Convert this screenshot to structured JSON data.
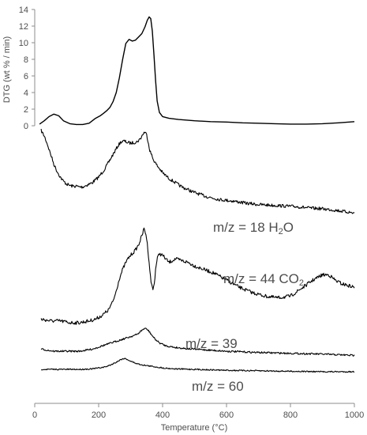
{
  "chart_data": {
    "type": "line",
    "xlabel": "Temperature (°C)",
    "ylabel": "DTG (wt % / min)",
    "xlim": [
      0,
      1000
    ],
    "ylim": [
      0,
      14
    ],
    "xticks": [
      0,
      200,
      400,
      600,
      800,
      1000
    ],
    "yticks": [
      0,
      2,
      4,
      6,
      8,
      10,
      12,
      14
    ],
    "grid": false,
    "colors": {
      "line": "#000000",
      "axis": "#8c8c8c",
      "text": "#4d4d4d"
    },
    "series": [
      {
        "name": "DTG",
        "x": [
          15,
          30,
          45,
          60,
          75,
          90,
          110,
          130,
          150,
          170,
          190,
          205,
          215,
          225,
          235,
          245,
          255,
          265,
          275,
          285,
          295,
          305,
          315,
          325,
          335,
          345,
          352,
          358,
          363,
          368,
          373,
          378,
          383,
          390,
          400,
          420,
          450,
          500,
          550,
          600,
          650,
          700,
          750,
          800,
          850,
          900,
          950,
          1000
        ],
        "y": [
          0.2,
          0.6,
          1.1,
          1.4,
          1.2,
          0.6,
          0.25,
          0.15,
          0.15,
          0.3,
          0.9,
          1.2,
          1.5,
          1.8,
          2.2,
          2.9,
          4.0,
          5.8,
          8.0,
          9.9,
          10.4,
          10.2,
          10.3,
          10.7,
          11.1,
          11.9,
          12.7,
          13.1,
          12.9,
          11.4,
          8.5,
          5.5,
          3.0,
          1.6,
          1.1,
          0.9,
          0.75,
          0.6,
          0.5,
          0.45,
          0.35,
          0.3,
          0.25,
          0.2,
          0.2,
          0.25,
          0.35,
          0.5
        ]
      },
      {
        "name": "m/z = 18 H2O",
        "x": [
          20,
          30,
          40,
          50,
          60,
          70,
          80,
          90,
          100,
          110,
          120,
          130,
          140,
          150,
          160,
          170,
          180,
          190,
          200,
          210,
          220,
          230,
          240,
          250,
          260,
          270,
          280,
          290,
          300,
          310,
          320,
          330,
          335,
          340,
          345,
          350,
          355,
          360,
          370,
          380,
          390,
          400,
          420,
          440,
          460,
          480,
          500,
          540,
          580,
          620,
          660,
          700,
          740,
          780,
          820,
          860,
          900,
          940,
          970,
          1000
        ],
        "y": [
          100,
          96,
          90,
          83,
          76,
          71,
          67,
          64,
          62,
          61,
          60.5,
          60.5,
          60,
          60,
          61,
          62,
          63,
          65,
          67,
          70,
          73,
          77,
          81,
          85,
          89,
          92,
          92.5,
          91.5,
          91,
          91.5,
          92,
          94,
          96,
          98,
          99,
          97,
          92,
          86,
          80,
          76,
          73,
          70,
          66,
          63,
          60,
          58,
          56,
          53,
          51,
          50,
          48.5,
          47.5,
          47,
          46.5,
          46,
          45,
          44.5,
          43.5,
          42.5,
          41.5
        ]
      },
      {
        "name": "m/z = 44 CO2",
        "x": [
          20,
          50,
          80,
          110,
          140,
          170,
          190,
          210,
          230,
          245,
          255,
          265,
          275,
          285,
          295,
          305,
          315,
          325,
          335,
          342,
          348,
          353,
          358,
          362,
          366,
          370,
          374,
          378,
          383,
          390,
          400,
          410,
          420,
          440,
          460,
          480,
          500,
          530,
          560,
          600,
          640,
          680,
          720,
          760,
          800,
          840,
          870,
          900,
          920,
          940,
          960,
          980,
          1000
        ],
        "y": [
          16,
          15.5,
          15.5,
          15,
          15,
          15.5,
          16,
          17,
          18.5,
          21,
          24,
          27.5,
          30,
          32,
          33.5,
          34.5,
          35.5,
          37,
          39.5,
          41.5,
          40,
          36.5,
          32,
          28,
          25.5,
          24.5,
          26,
          30,
          33,
          34.5,
          34,
          33,
          32,
          33,
          32.5,
          32,
          31,
          30,
          29,
          27,
          25,
          23.5,
          22.5,
          22,
          22.5,
          25,
          27,
          28.5,
          28.5,
          27,
          26,
          25.5,
          25
        ]
      },
      {
        "name": "m/z = 39",
        "x": [
          20,
          60,
          100,
          140,
          180,
          200,
          220,
          240,
          260,
          280,
          300,
          320,
          335,
          345,
          355,
          365,
          375,
          390,
          410,
          440,
          480,
          520,
          600,
          700,
          800,
          900,
          1000
        ],
        "y": [
          5,
          4.5,
          4.5,
          4.5,
          5,
          5.5,
          6,
          6.5,
          7,
          7.5,
          8,
          8.5,
          9.5,
          10,
          9.5,
          8.5,
          7.5,
          6.5,
          5.8,
          5.4,
          5.1,
          4.9,
          4.5,
          4.2,
          4,
          3.8,
          3.5
        ]
      },
      {
        "name": "m/z = 60",
        "x": [
          20,
          60,
          100,
          140,
          180,
          220,
          240,
          260,
          270,
          280,
          290,
          300,
          320,
          340,
          360,
          380,
          400,
          440,
          500,
          600,
          700,
          800,
          900,
          1000
        ],
        "y": [
          1.5,
          1.5,
          1.5,
          1.5,
          1.6,
          2,
          2.5,
          3.2,
          3.6,
          3.8,
          3.6,
          3.2,
          2.7,
          2.4,
          2.2,
          2,
          1.8,
          1.6,
          1.5,
          1.3,
          1.2,
          1.1,
          1,
          1
        ]
      }
    ],
    "annotations": [
      {
        "label_parts": [
          "m/z = 18 H",
          "2",
          "O"
        ]
      },
      {
        "label_parts": [
          "m/z = 44 CO",
          "2"
        ]
      },
      {
        "label": "m/z = 39"
      },
      {
        "label": "m/z = 60"
      }
    ]
  }
}
